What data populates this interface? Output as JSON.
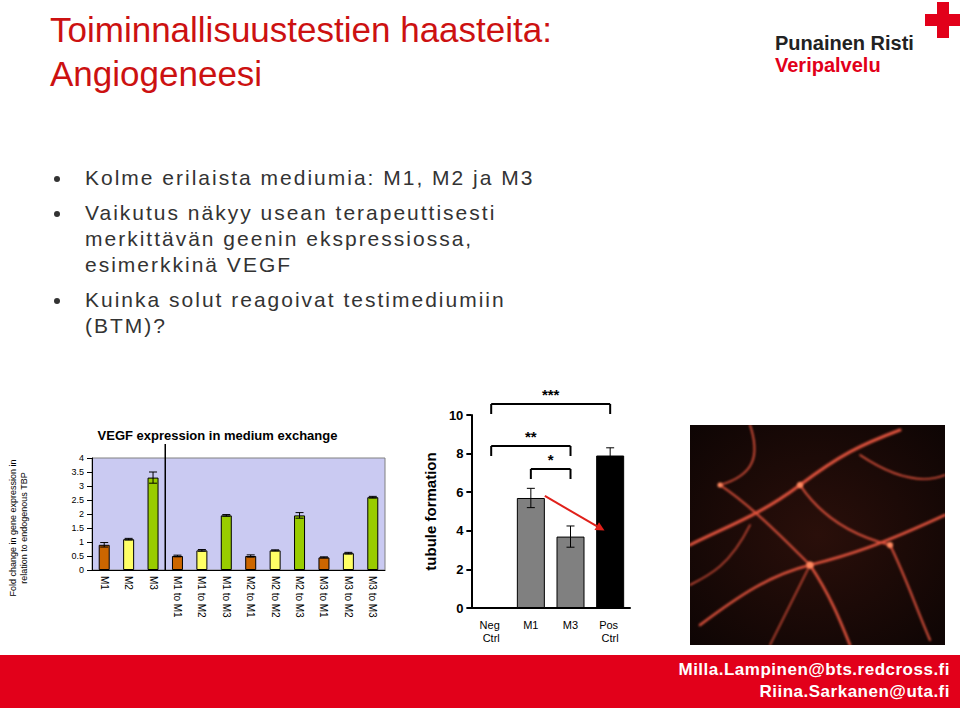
{
  "title": [
    "Toiminnallisuustestien haasteita:",
    "Angiogeneesi"
  ],
  "logo": {
    "name": "Punainen Risti",
    "unit": "Veripalvelu"
  },
  "bullets": [
    "Kolme erilaista mediumia: M1, M2 ja M3",
    "Vaikutus näkyy usean terapeuttisesti merkittävän geenin ekspressiossa, esimerkkinä VEGF",
    "Kuinka solut reagoivat testimediumiin (BTM)?"
  ],
  "chart_data": [
    {
      "type": "bar",
      "title": "VEGF expression in medium exchange",
      "y_label": "Fold change in gene expression in relation to endogenous TBP",
      "categories": [
        "M1",
        "M2",
        "M3",
        "M1 to M1",
        "M1 to M2",
        "M1 to M3",
        "M2 to M1",
        "M2 to M2",
        "M2 to M3",
        "M3 to M1",
        "M3 to M2",
        "M3 to M3"
      ],
      "values": [
        0.9,
        1.1,
        3.3,
        0.5,
        0.7,
        1.95,
        0.5,
        0.7,
        1.95,
        0.45,
        0.6,
        2.6
      ],
      "errors": [
        0.08,
        0.03,
        0.2,
        0.03,
        0.03,
        0.03,
        0.04,
        0.02,
        0.1,
        0.02,
        0.03,
        0.03
      ],
      "colors": [
        "#cc6600",
        "#ffff66",
        "#99cc00",
        "#cc6600",
        "#ffff66",
        "#99cc00",
        "#cc6600",
        "#ffff66",
        "#99cc00",
        "#cc6600",
        "#ffff66",
        "#99cc00"
      ],
      "ylim": [
        0,
        4
      ],
      "yticks": [
        0,
        0.5,
        1,
        1.5,
        2,
        2.5,
        3,
        3.5,
        4
      ],
      "grid": false
    },
    {
      "type": "bar",
      "y_label": "tubule formation",
      "categories": [
        "Neg Ctrl",
        "M1",
        "M3",
        "Pos Ctrl"
      ],
      "values": [
        0,
        5.7,
        3.7,
        7.9
      ],
      "errors": [
        null,
        0.5,
        0.55,
        0.4
      ],
      "colors": [
        "#808080",
        "#808080",
        "#808080",
        "#000000"
      ],
      "ylim": [
        0,
        10
      ],
      "yticks": [
        0,
        2,
        4,
        6,
        8,
        10
      ],
      "grid": false,
      "annotations": [
        {
          "text": "***",
          "from": "Neg Ctrl",
          "to": "Pos Ctrl"
        },
        {
          "text": "**",
          "from": "Neg Ctrl",
          "to": "M3"
        },
        {
          "text": "*",
          "from": "M1",
          "to": "M3"
        }
      ]
    }
  ],
  "contacts": [
    "Milla.Lampinen@bts.redcross.fi",
    "Riina.Sarkanen@uta.fi"
  ]
}
